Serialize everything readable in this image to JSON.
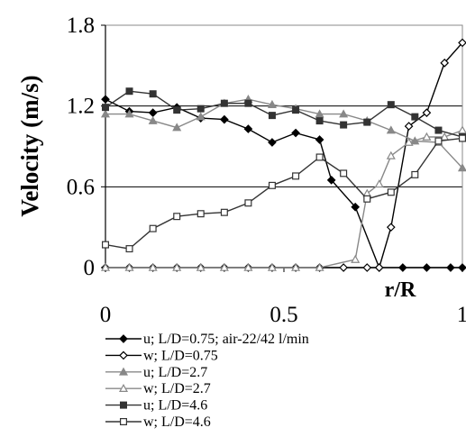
{
  "chart_data": {
    "type": "line",
    "xlabel": "r/R",
    "ylabel": "Velocity (m/s)",
    "xlim": [
      0,
      1
    ],
    "ylim": [
      0,
      1.8
    ],
    "xticks": [
      "0",
      "0.5",
      "1"
    ],
    "yticks": [
      "0",
      "0.6",
      "1.2",
      "1.8"
    ],
    "grid": "horizontal",
    "legend_position": "bottom",
    "series": [
      {
        "name": "u; L/D=0.75; air-22/42 l/min",
        "color": "#000000",
        "marker": "diamond-filled",
        "x": [
          0,
          0.067,
          0.133,
          0.2,
          0.267,
          0.333,
          0.4,
          0.467,
          0.533,
          0.6,
          0.633,
          0.7,
          0.767,
          0.833,
          0.9,
          0.967,
          1.0
        ],
        "y": [
          1.25,
          1.16,
          1.15,
          1.19,
          1.11,
          1.1,
          1.03,
          0.93,
          1.0,
          0.95,
          0.65,
          0.45,
          0.0,
          0.0,
          0.0,
          0.0,
          0.0
        ]
      },
      {
        "name": "w; L/D=0.75",
        "color": "#000000",
        "marker": "diamond-open",
        "x": [
          0,
          0.067,
          0.133,
          0.2,
          0.267,
          0.333,
          0.4,
          0.467,
          0.533,
          0.6,
          0.667,
          0.733,
          0.767,
          0.8,
          0.85,
          0.9,
          0.95,
          1.0
        ],
        "y": [
          0,
          0,
          0,
          0,
          0,
          0,
          0,
          0,
          0,
          0,
          0,
          0,
          0,
          0.3,
          1.05,
          1.15,
          1.52,
          1.67
        ]
      },
      {
        "name": "u; L/D=2.7",
        "color": "#888888",
        "marker": "triangle-filled",
        "x": [
          0,
          0.067,
          0.133,
          0.2,
          0.267,
          0.333,
          0.4,
          0.467,
          0.533,
          0.6,
          0.667,
          0.733,
          0.8,
          0.867,
          0.933,
          1.0
        ],
        "y": [
          1.14,
          1.14,
          1.09,
          1.04,
          1.12,
          1.22,
          1.25,
          1.21,
          1.18,
          1.14,
          1.14,
          1.09,
          1.02,
          0.94,
          0.93,
          0.74
        ]
      },
      {
        "name": "w; L/D=2.7",
        "color": "#888888",
        "marker": "triangle-open",
        "x": [
          0,
          0.067,
          0.133,
          0.2,
          0.267,
          0.333,
          0.4,
          0.467,
          0.533,
          0.6,
          0.7,
          0.733,
          0.767,
          0.8,
          0.85,
          0.9,
          0.95,
          1.0
        ],
        "y": [
          0,
          0,
          0,
          0,
          0,
          0,
          0,
          0,
          0,
          0,
          0.06,
          0.55,
          0.62,
          0.83,
          0.93,
          0.97,
          0.97,
          1.02
        ]
      },
      {
        "name": "u; L/D=4.6",
        "color": "#333333",
        "marker": "square-filled",
        "x": [
          0,
          0.067,
          0.133,
          0.2,
          0.267,
          0.333,
          0.4,
          0.467,
          0.533,
          0.6,
          0.667,
          0.733,
          0.8,
          0.867,
          0.933,
          1.0
        ],
        "y": [
          1.19,
          1.31,
          1.29,
          1.17,
          1.18,
          1.22,
          1.22,
          1.13,
          1.17,
          1.09,
          1.06,
          1.08,
          1.21,
          1.12,
          1.02,
          0.97
        ]
      },
      {
        "name": "w; L/D=4.6",
        "color": "#333333",
        "marker": "square-open",
        "x": [
          0,
          0.067,
          0.133,
          0.2,
          0.267,
          0.333,
          0.4,
          0.467,
          0.533,
          0.6,
          0.667,
          0.733,
          0.8,
          0.867,
          0.933,
          1.0
        ],
        "y": [
          0.17,
          0.14,
          0.29,
          0.38,
          0.4,
          0.41,
          0.48,
          0.61,
          0.68,
          0.82,
          0.7,
          0.51,
          0.56,
          0.69,
          0.94,
          0.96
        ]
      }
    ]
  }
}
